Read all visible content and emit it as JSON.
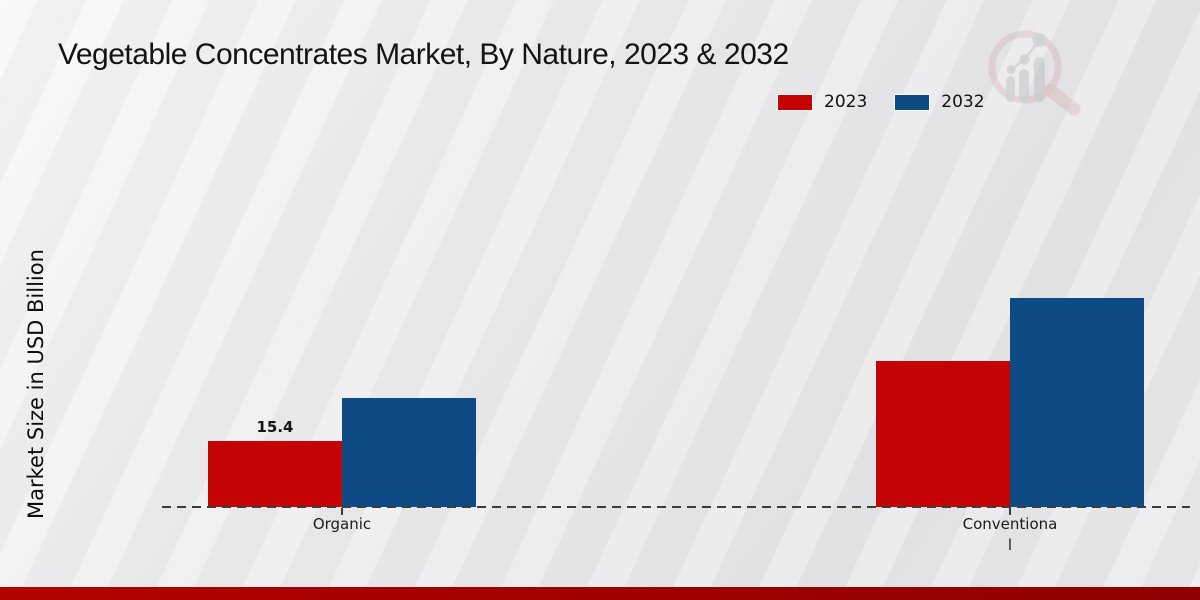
{
  "page": {
    "watermark_icon": "magnifier-bar-chart-logo"
  },
  "footer": {
    "bar_colors": [
      "#b20300",
      "#8e0100"
    ]
  },
  "chart_data": {
    "type": "bar",
    "title": "Vegetable Concentrates Market, By Nature, 2023 & 2032",
    "ylabel": "Market Size in USD Billion",
    "xlabel": "",
    "categories": [
      "Organic",
      "Conventional"
    ],
    "tick_labels": [
      "Organic",
      "Conventiona\nl"
    ],
    "series": [
      {
        "name": "2023",
        "color": "#c40404",
        "values": [
          15.4,
          34.0
        ]
      },
      {
        "name": "2032",
        "color": "#0e4a84",
        "values": [
          25.4,
          48.8
        ]
      }
    ],
    "value_labels": [
      {
        "series": 0,
        "category": 0,
        "text": "15.4"
      }
    ],
    "ylim": [
      0,
      70
    ],
    "grid": false,
    "legend_position": "top-right",
    "baseline_style": "dashed",
    "axis_color": "#3c3c3c"
  }
}
